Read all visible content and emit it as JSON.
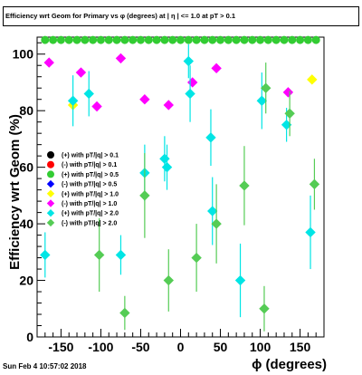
{
  "chart_data": {
    "type": "scatter",
    "title": "Efficiency wrt Geom for Primary vs φ (degrees) at | η | <= 1.0 at pT > 0.1",
    "xlabel": "ϕ (degrees)",
    "ylabel": "Efficiency wrt Geom (%)",
    "xlim": [
      -180,
      180
    ],
    "ylim": [
      0,
      106
    ],
    "xticks": [
      -150,
      -100,
      -50,
      0,
      50,
      100,
      150
    ],
    "yticks": [
      0,
      20,
      40,
      60,
      80,
      100
    ],
    "grid": false,
    "legend_position": "left-middle",
    "series": [
      {
        "name": "(+) with pT/|q| > 0.1",
        "color": "#000000",
        "marker": "circle",
        "x": [],
        "y": [],
        "err": []
      },
      {
        "name": "(-) with pT/|q| > 0.1",
        "color": "#ff0000",
        "marker": "circle",
        "x": [],
        "y": [],
        "err": []
      },
      {
        "name": "(+) with pT/|q| > 0.5",
        "color": "#33cc33",
        "marker": "circle",
        "x": [
          -170,
          -160,
          -150,
          -140,
          -130,
          -120,
          -110,
          -100,
          -90,
          -80,
          -70,
          -60,
          -50,
          -40,
          -30,
          -20,
          -10,
          0,
          10,
          20,
          30,
          40,
          50,
          60,
          70,
          80,
          90,
          100,
          110,
          120,
          130,
          140,
          150,
          160,
          170
        ],
        "y": [
          105,
          105,
          105,
          105,
          105,
          105,
          105,
          105,
          105,
          105,
          105,
          105,
          105,
          105,
          105,
          105,
          105,
          105,
          105,
          105,
          105,
          105,
          105,
          105,
          105,
          105,
          105,
          105,
          105,
          105,
          105,
          105,
          105,
          105,
          105
        ],
        "err": [
          0,
          0,
          0,
          0,
          0,
          0,
          0,
          0,
          0,
          0,
          0,
          0,
          0,
          0,
          0,
          0,
          0,
          0,
          0,
          0,
          0,
          0,
          0,
          0,
          0,
          0,
          0,
          0,
          0,
          0,
          0,
          0,
          0,
          0,
          0
        ]
      },
      {
        "name": "(-) with pT/|q| > 0.5",
        "color": "#0000ff",
        "marker": "diamond",
        "x": [],
        "y": [],
        "err": []
      },
      {
        "name": "(+) with pT/|q| > 1.0",
        "color": "#ffff00",
        "marker": "diamond",
        "x": [
          -135,
          165
        ],
        "y": [
          82,
          91
        ],
        "err": [
          0,
          0
        ]
      },
      {
        "name": "(-) with pT/|q| > 1.0",
        "color": "#ff00ff",
        "marker": "diamond",
        "x": [
          -165,
          -125,
          -105,
          -75,
          -45,
          -15,
          15,
          45,
          135
        ],
        "y": [
          97,
          93.5,
          81.5,
          98.5,
          84,
          82,
          90,
          95,
          86.5
        ],
        "err": [
          0,
          0,
          0,
          0,
          0,
          0,
          0,
          0,
          0
        ]
      },
      {
        "name": "(+) with pT/|q| > 2.0",
        "color": "#00e5e5",
        "marker": "diamond",
        "x": [
          -170,
          -135,
          -115,
          -75,
          -45,
          -20,
          -17,
          10,
          12,
          38,
          40,
          75,
          102,
          133,
          163
        ],
        "y": [
          29,
          83.5,
          86,
          29,
          58,
          63,
          60,
          97.5,
          86,
          70.5,
          44.5,
          20,
          83.5,
          75,
          37
        ],
        "err": [
          8,
          9,
          8,
          7,
          10,
          8,
          8,
          6,
          10,
          10,
          12,
          13,
          10,
          6,
          13
        ]
      },
      {
        "name": "(-) with pT/|q| > 2.0",
        "color": "#55cc55",
        "marker": "diamond",
        "x": [
          -102,
          -70,
          -45,
          -15,
          20,
          45,
          80,
          105,
          107,
          137,
          168
        ],
        "y": [
          29,
          8.5,
          50,
          20,
          28,
          40,
          53.5,
          10,
          88,
          79,
          54
        ],
        "err": [
          13,
          6,
          15,
          11,
          12,
          14,
          14,
          8,
          9,
          8,
          9
        ]
      }
    ]
  },
  "footer": {
    "date": "Sun Feb  4 10:57:02 2018"
  }
}
